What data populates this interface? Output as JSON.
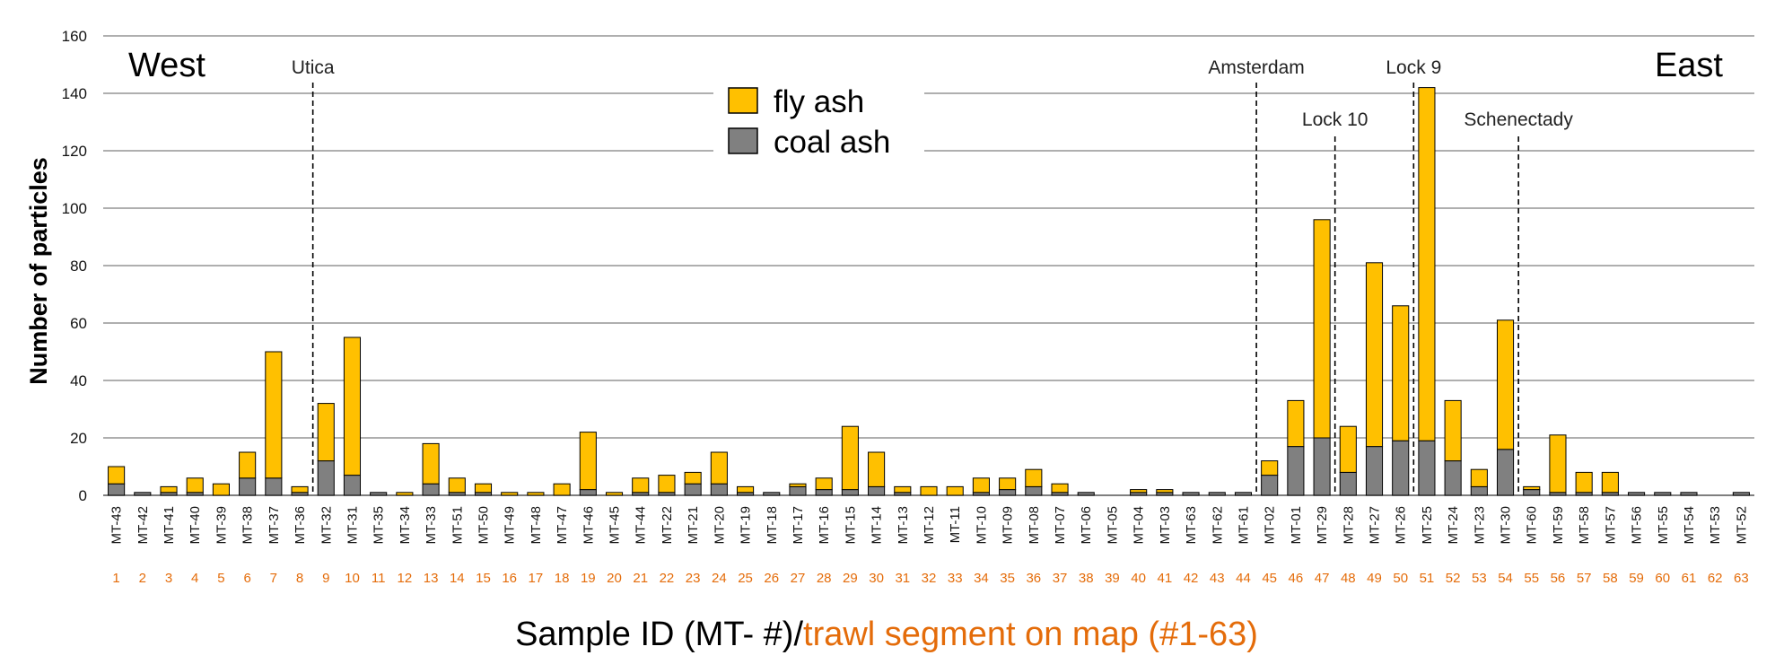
{
  "chart_data": {
    "type": "bar",
    "stacked": true,
    "ylabel": "Number of particles",
    "ylim": [
      0,
      160
    ],
    "yticks": [
      0,
      20,
      40,
      60,
      80,
      100,
      120,
      140,
      160
    ],
    "grid": true,
    "legend_position": "top-center",
    "xlabel": {
      "part1": "Sample ID (MT- #)/",
      "part2": "trawl segment on map (#1-63)",
      "part1_color": "#000000",
      "part2_color": "#e46c0a"
    },
    "categories": [
      "MT-43",
      "MT-42",
      "MT-41",
      "MT-40",
      "MT-39",
      "MT-38",
      "MT-37",
      "MT-36",
      "MT-32",
      "MT-31",
      "MT-35",
      "MT-34",
      "MT-33",
      "MT-51",
      "MT-50",
      "MT-49",
      "MT-48",
      "MT-47",
      "MT-46",
      "MT-45",
      "MT-44",
      "MT-22",
      "MT-21",
      "MT-20",
      "MT-19",
      "MT-18",
      "MT-17",
      "MT-16",
      "MT-15",
      "MT-14",
      "MT-13",
      "MT-12",
      "MT-11",
      "MT-10",
      "MT-09",
      "MT-08",
      "MT-07",
      "MT-06",
      "MT-05",
      "MT-04",
      "MT-03",
      "MT-63",
      "MT-62",
      "MT-61",
      "MT-02",
      "MT-01",
      "MT-29",
      "MT-28",
      "MT-27",
      "MT-26",
      "MT-25",
      "MT-24",
      "MT-23",
      "MT-30",
      "MT-60",
      "MT-59",
      "MT-58",
      "MT-57",
      "MT-56",
      "MT-55",
      "MT-54",
      "MT-53",
      "MT-52"
    ],
    "segments": [
      "1",
      "2",
      "3",
      "4",
      "5",
      "6",
      "7",
      "8",
      "9",
      "10",
      "11",
      "12",
      "13",
      "14",
      "15",
      "16",
      "17",
      "18",
      "19",
      "20",
      "21",
      "22",
      "23",
      "24",
      "25",
      "26",
      "27",
      "28",
      "29",
      "30",
      "31",
      "32",
      "33",
      "34",
      "35",
      "36",
      "37",
      "38",
      "39",
      "40",
      "41",
      "42",
      "43",
      "44",
      "45",
      "46",
      "47",
      "48",
      "49",
      "50",
      "51",
      "52",
      "53",
      "54",
      "55",
      "56",
      "57",
      "58",
      "59",
      "60",
      "61",
      "62",
      "63"
    ],
    "series": [
      {
        "name": "coal ash",
        "color": "#808080",
        "values": [
          4,
          1,
          1,
          1,
          0,
          6,
          6,
          1,
          12,
          7,
          1,
          0,
          4,
          1,
          1,
          0,
          0,
          0,
          2,
          0,
          1,
          1,
          4,
          4,
          1,
          1,
          3,
          2,
          2,
          3,
          1,
          0,
          0,
          1,
          2,
          3,
          1,
          1,
          0,
          1,
          1,
          1,
          1,
          1,
          7,
          17,
          20,
          8,
          17,
          19,
          19,
          12,
          3,
          16,
          2,
          1,
          1,
          1,
          1,
          1,
          1,
          0,
          1
        ]
      },
      {
        "name": "fly ash",
        "color": "#ffc000",
        "values": [
          6,
          0,
          2,
          5,
          4,
          9,
          44,
          2,
          20,
          48,
          0,
          1,
          14,
          5,
          3,
          1,
          1,
          4,
          20,
          1,
          5,
          6,
          4,
          11,
          2,
          0,
          1,
          4,
          22,
          12,
          2,
          3,
          3,
          5,
          4,
          6,
          3,
          0,
          0,
          1,
          1,
          0,
          0,
          0,
          5,
          16,
          76,
          16,
          64,
          47,
          123,
          21,
          6,
          45,
          1,
          20,
          7,
          7,
          0,
          0,
          0,
          0,
          0
        ]
      }
    ],
    "annotations": [
      {
        "label": "Utica",
        "after_index": 7
      },
      {
        "label": "Amsterdam",
        "after_index": 43
      },
      {
        "label": "Lock 10",
        "after_index": 46
      },
      {
        "label": "Lock 9",
        "after_index": 49
      },
      {
        "label": "Schenectady",
        "after_index": 53
      }
    ],
    "corner_labels": {
      "left": "West",
      "right": "East"
    }
  }
}
